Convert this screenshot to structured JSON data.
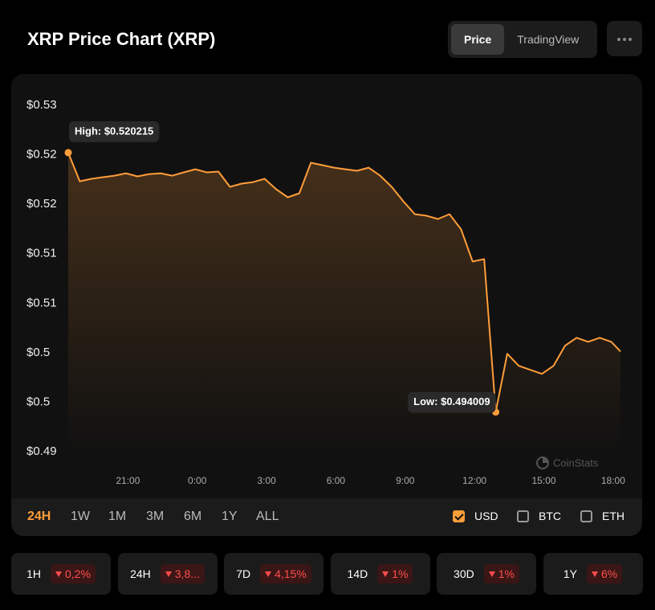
{
  "header": {
    "title": "XRP Price Chart (XRP)",
    "tabs": [
      "Price",
      "TradingView"
    ],
    "active_tab": 0
  },
  "chart_data": {
    "type": "line",
    "color": "#ff9d3a",
    "x": [
      "18:25",
      "18:55",
      "19:25",
      "19:55",
      "20:25",
      "20:55",
      "21:25",
      "21:55",
      "22:25",
      "22:55",
      "23:25",
      "23:55",
      "0:25",
      "0:55",
      "1:25",
      "1:55",
      "2:25",
      "2:55",
      "3:25",
      "3:55",
      "4:25",
      "4:55",
      "5:25",
      "5:55",
      "6:25",
      "6:55",
      "7:25",
      "7:55",
      "8:25",
      "8:55",
      "9:25",
      "9:55",
      "10:25",
      "10:55",
      "11:25",
      "11:55",
      "12:25",
      "12:55",
      "13:25",
      "13:55",
      "14:25",
      "14:55",
      "15:25",
      "15:55",
      "16:25",
      "16:55",
      "17:25",
      "17:55",
      "18:19"
    ],
    "values": [
      0.520215,
      0.51732,
      0.51757,
      0.51773,
      0.51789,
      0.51813,
      0.51781,
      0.51805,
      0.51813,
      0.51789,
      0.51822,
      0.51854,
      0.51822,
      0.5183,
      0.51676,
      0.51708,
      0.51724,
      0.51757,
      0.51651,
      0.5157,
      0.51611,
      0.51919,
      0.51895,
      0.5187,
      0.51854,
      0.51838,
      0.5187,
      0.51789,
      0.51676,
      0.5153,
      0.514,
      0.51384,
      0.51351,
      0.514,
      0.51246,
      0.50921,
      0.50946,
      0.494009,
      0.49989,
      0.49867,
      0.49827,
      0.49786,
      0.49867,
      0.5007,
      0.50151,
      0.5011,
      0.50151,
      0.5011,
      0.50013
    ],
    "xlim": [
      "18:25",
      "18:19"
    ],
    "xticks": [
      "21:00",
      "0:00",
      "3:00",
      "6:00",
      "9:00",
      "12:00",
      "15:00",
      "18:00"
    ],
    "ylim": [
      0.49,
      0.525
    ],
    "yticks": [
      {
        "value": 0.525,
        "label": "$0.53"
      },
      {
        "value": 0.52,
        "label": "$0.52"
      },
      {
        "value": 0.515,
        "label": "$0.52"
      },
      {
        "value": 0.51,
        "label": "$0.51"
      },
      {
        "value": 0.505,
        "label": "$0.51"
      },
      {
        "value": 0.5,
        "label": "$0.5"
      },
      {
        "value": 0.495,
        "label": "$0.5"
      },
      {
        "value": 0.49,
        "label": "$0.49"
      }
    ],
    "annotations": {
      "high": "High: $0.520215",
      "low": "Low: $0.494009"
    },
    "watermark": "CoinStats"
  },
  "ranges": [
    "24H",
    "1W",
    "1M",
    "3M",
    "6M",
    "1Y",
    "ALL"
  ],
  "active_range": 0,
  "currencies": [
    {
      "name": "USD",
      "checked": true
    },
    {
      "name": "BTC",
      "checked": false
    },
    {
      "name": "ETH",
      "checked": false
    }
  ],
  "changes": [
    {
      "period": "1H",
      "change": "0,2%"
    },
    {
      "period": "24H",
      "change": "3,8..."
    },
    {
      "period": "7D",
      "change": "4,15%"
    },
    {
      "period": "14D",
      "change": "1%"
    },
    {
      "period": "30D",
      "change": "1%"
    },
    {
      "period": "1Y",
      "change": "6%"
    }
  ]
}
